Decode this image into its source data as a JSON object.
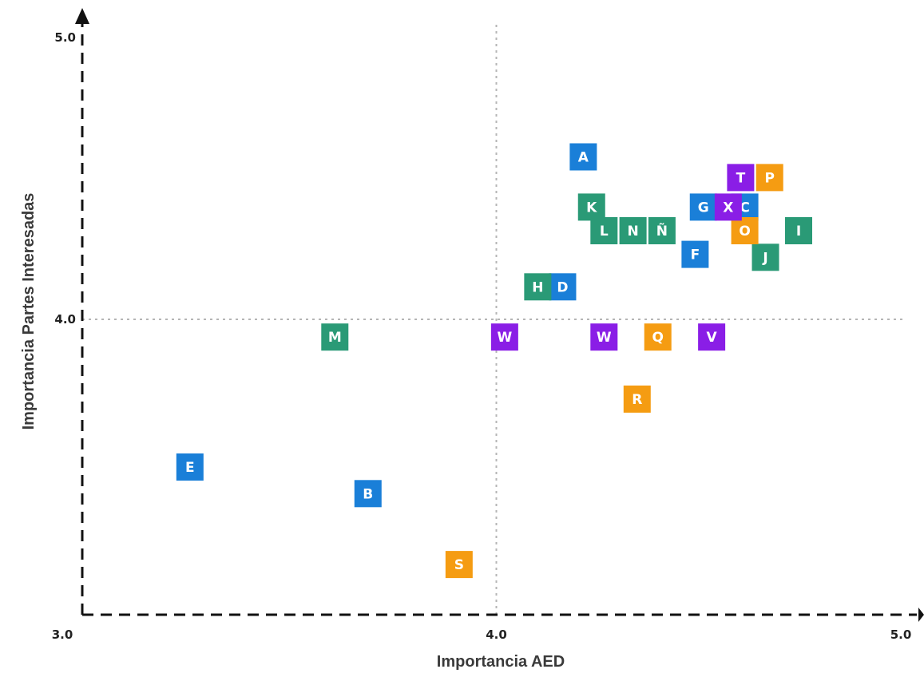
{
  "chart_data": {
    "type": "scatter",
    "title": "",
    "xlabel": "Importancia AED",
    "ylabel": "Importancia Partes Interesadas",
    "xlim": [
      3.0,
      5.0
    ],
    "ylim": [
      3.0,
      5.0
    ],
    "x_ticks": [
      "3.0",
      "4.0",
      "5.0"
    ],
    "y_ticks": [
      "3.0",
      "4.0",
      "5.0"
    ],
    "reference_lines": {
      "x": 4.0,
      "y": 4.0
    },
    "grid": false,
    "legend": "none",
    "colors": {
      "blue": "#1a7fd8",
      "green": "#2a9a76",
      "purple": "#8a1ee6",
      "orange": "#f59c12"
    },
    "points": [
      {
        "label": "A",
        "x": 4.21,
        "y": 4.55,
        "color": "blue"
      },
      {
        "label": "B",
        "x": 3.69,
        "y": 3.41,
        "color": "blue"
      },
      {
        "label": "C",
        "x": 4.6,
        "y": 4.38,
        "color": "blue"
      },
      {
        "label": "D",
        "x": 4.16,
        "y": 4.11,
        "color": "blue"
      },
      {
        "label": "E",
        "x": 3.26,
        "y": 3.5,
        "color": "blue"
      },
      {
        "label": "F",
        "x": 4.48,
        "y": 4.22,
        "color": "blue"
      },
      {
        "label": "G",
        "x": 4.5,
        "y": 4.38,
        "color": "blue"
      },
      {
        "label": "H",
        "x": 4.1,
        "y": 4.11,
        "color": "green"
      },
      {
        "label": "I",
        "x": 4.73,
        "y": 4.3,
        "color": "green"
      },
      {
        "label": "J",
        "x": 4.65,
        "y": 4.21,
        "color": "green"
      },
      {
        "label": "K",
        "x": 4.23,
        "y": 4.38,
        "color": "green"
      },
      {
        "label": "L",
        "x": 4.26,
        "y": 4.3,
        "color": "green"
      },
      {
        "label": "M",
        "x": 3.61,
        "y": 3.94,
        "color": "green"
      },
      {
        "label": "N",
        "x": 4.33,
        "y": 4.3,
        "color": "green"
      },
      {
        "label": "Ñ",
        "x": 4.4,
        "y": 4.3,
        "color": "green"
      },
      {
        "label": "O",
        "x": 4.6,
        "y": 4.3,
        "color": "orange"
      },
      {
        "label": "P",
        "x": 4.66,
        "y": 4.48,
        "color": "orange"
      },
      {
        "label": "Q",
        "x": 4.39,
        "y": 3.94,
        "color": "orange"
      },
      {
        "label": "R",
        "x": 4.34,
        "y": 3.73,
        "color": "orange"
      },
      {
        "label": "S",
        "x": 3.91,
        "y": 3.17,
        "color": "orange"
      },
      {
        "label": "T",
        "x": 4.59,
        "y": 4.48,
        "color": "purple"
      },
      {
        "label": "V",
        "x": 4.52,
        "y": 3.94,
        "color": "purple"
      },
      {
        "label": "W",
        "x": 4.02,
        "y": 3.94,
        "color": "purple"
      },
      {
        "label": "W",
        "x": 4.26,
        "y": 3.94,
        "color": "purple"
      },
      {
        "label": "X",
        "x": 4.56,
        "y": 4.38,
        "color": "purple"
      }
    ]
  }
}
